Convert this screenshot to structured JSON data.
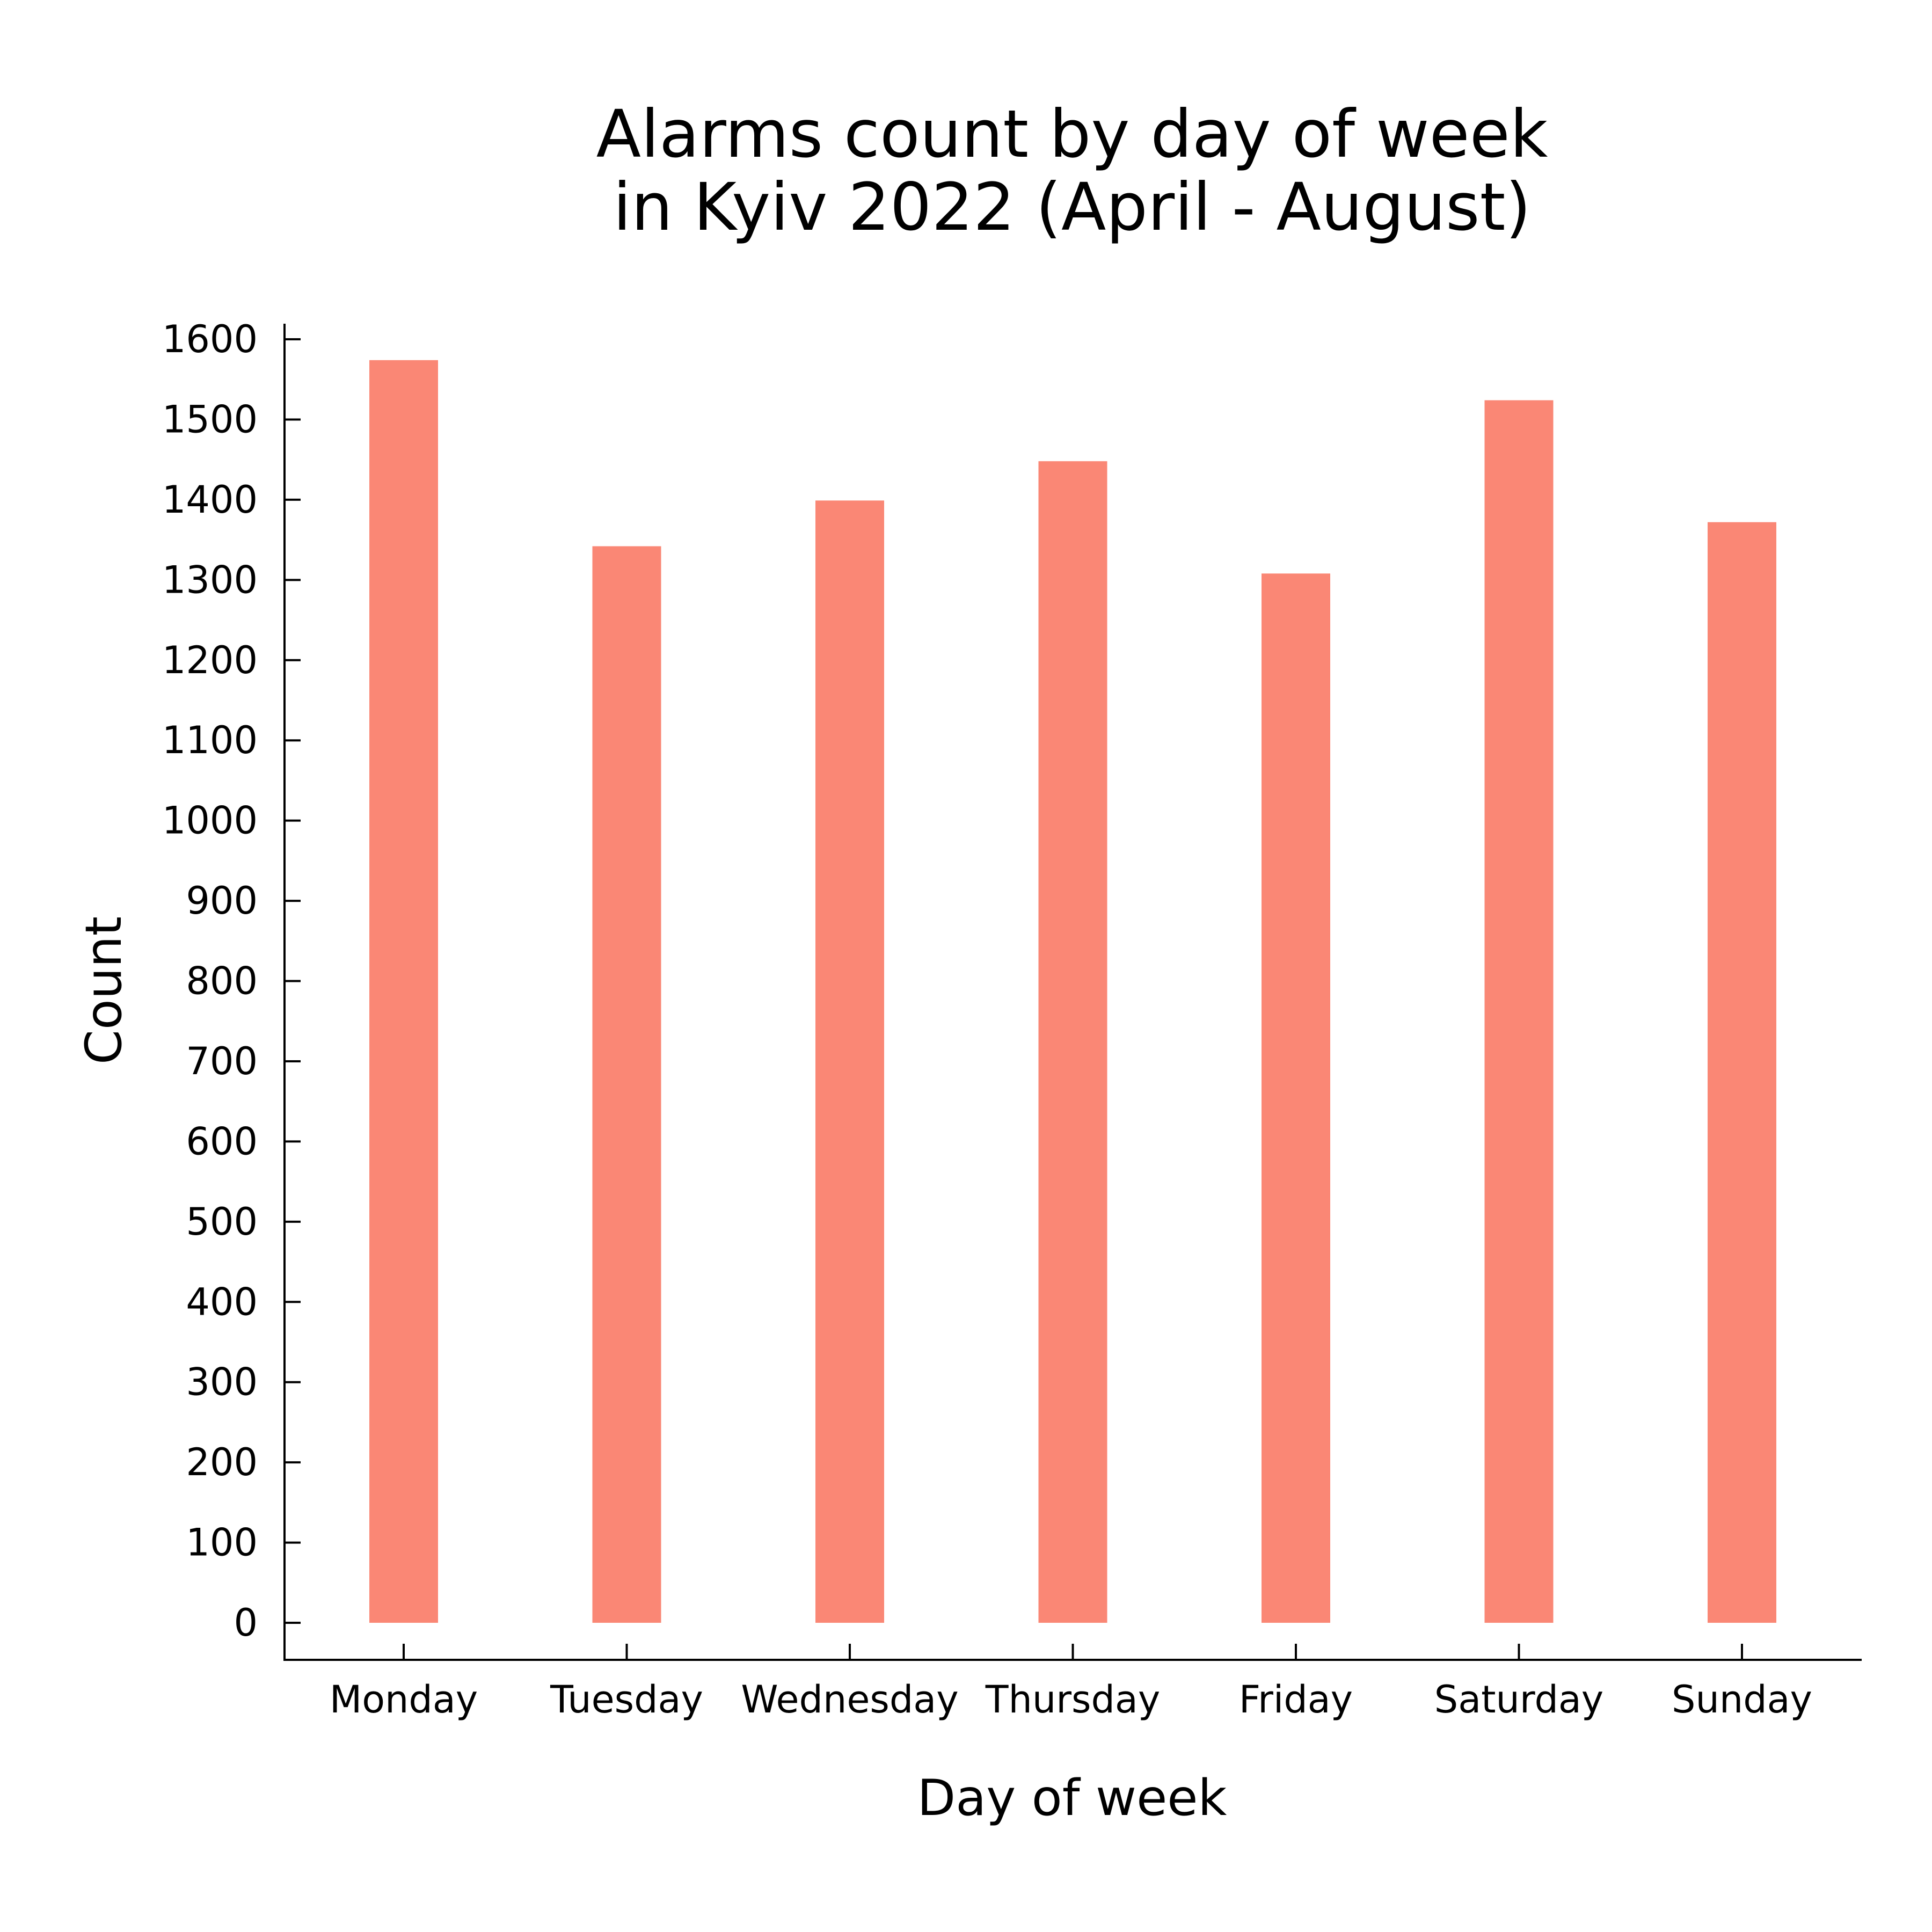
{
  "chart_data": {
    "type": "bar",
    "title": [
      "Alarms count by day of week",
      "in Kyiv 2022 (April - August)"
    ],
    "xlabel": "Day of week",
    "ylabel": "Count",
    "categories": [
      "Monday",
      "Tuesday",
      "Wednesday",
      "Thursday",
      "Friday",
      "Saturday",
      "Sunday"
    ],
    "values": [
      1574,
      1342,
      1399,
      1448,
      1308,
      1524,
      1372
    ],
    "ylim": [
      0,
      1600
    ],
    "yticks": [
      0,
      100,
      200,
      300,
      400,
      500,
      600,
      700,
      800,
      900,
      1000,
      1100,
      1200,
      1300,
      1400,
      1500,
      1600
    ],
    "bar_color": "#FA8775",
    "axis_color": "#000000",
    "grid": false,
    "legend": "none"
  }
}
